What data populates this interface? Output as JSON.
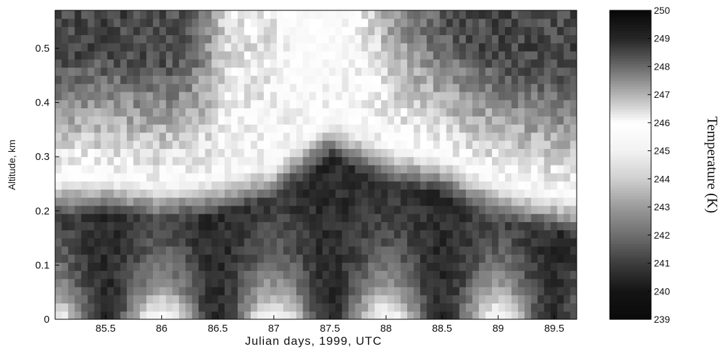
{
  "chart_data": {
    "type": "heatmap",
    "title": "",
    "xlabel": "Julian days, 1999, UTC",
    "ylabel": "Altitude, km",
    "colorbar_label": "Temperature (K)",
    "xlim": [
      85.05,
      89.7
    ],
    "ylim": [
      0,
      0.57
    ],
    "x_ticks": [
      85.5,
      86,
      86.5,
      87,
      87.5,
      88,
      88.5,
      89,
      89.5
    ],
    "x_tick_labels": [
      "85.5",
      "86",
      "86.5",
      "87",
      "87.5",
      "88",
      "88.5",
      "89",
      "89.5"
    ],
    "y_ticks": [
      0,
      0.1,
      0.2,
      0.3,
      0.4,
      0.5
    ],
    "y_tick_labels": [
      "0",
      "0.1",
      "0.2",
      "0.3",
      "0.4",
      "0.5"
    ],
    "colorbar_range": [
      239,
      250
    ],
    "colorbar_ticks": [
      239,
      240,
      241,
      242,
      243,
      244,
      245,
      246,
      247,
      248,
      249,
      250
    ],
    "colorbar_tick_labels": [
      "239",
      "240",
      "241",
      "242",
      "243",
      "244",
      "245",
      "246",
      "247",
      "248",
      "249",
      "250"
    ],
    "colormap": "grayscale banded (dark at both ends, white near 245-246 K)",
    "colormap_stops": [
      {
        "value": 239,
        "color": "#0a0a0a"
      },
      {
        "value": 240,
        "color": "#141414"
      },
      {
        "value": 241,
        "color": "#3c3c3c"
      },
      {
        "value": 242,
        "color": "#6e6e6e"
      },
      {
        "value": 243,
        "color": "#9a9a9a"
      },
      {
        "value": 244,
        "color": "#cfcfcf"
      },
      {
        "value": 245,
        "color": "#f2f2f2"
      },
      {
        "value": 246,
        "color": "#ffffff"
      },
      {
        "value": 247,
        "color": "#b4b4b4"
      },
      {
        "value": 248,
        "color": "#6a6a6a"
      },
      {
        "value": 249,
        "color": "#262626"
      },
      {
        "value": 250,
        "color": "#080808"
      }
    ],
    "inversion_layer_base_km": [
      {
        "x": 85.05,
        "y": 0.25
      },
      {
        "x": 85.5,
        "y": 0.25
      },
      {
        "x": 86.0,
        "y": 0.24
      },
      {
        "x": 86.5,
        "y": 0.25
      },
      {
        "x": 87.0,
        "y": 0.28
      },
      {
        "x": 87.5,
        "y": 0.36
      },
      {
        "x": 88.0,
        "y": 0.31
      },
      {
        "x": 88.5,
        "y": 0.29
      },
      {
        "x": 89.0,
        "y": 0.24
      },
      {
        "x": 89.5,
        "y": 0.22
      },
      {
        "x": 89.7,
        "y": 0.21
      }
    ]
  }
}
